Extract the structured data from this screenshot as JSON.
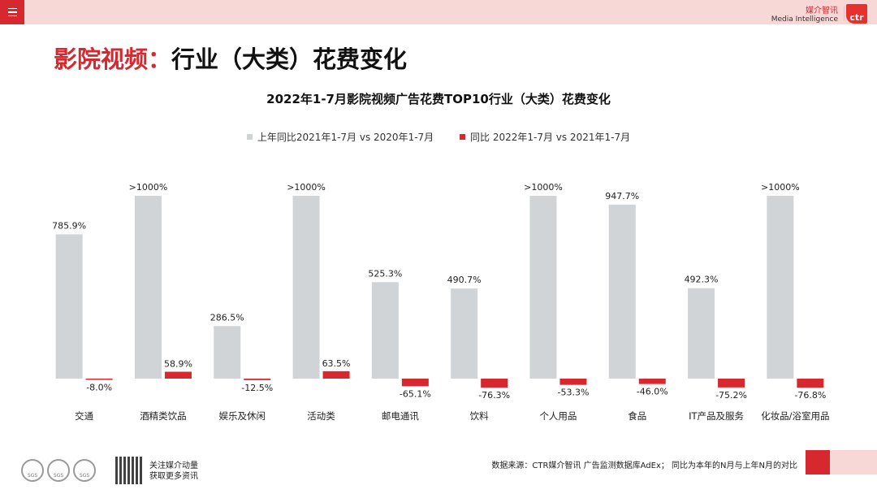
{
  "header": {
    "brand_cn": "媒介智讯",
    "brand_en": "Media Intelligence",
    "logo_text": "ctr"
  },
  "page_title": {
    "prefix": "影院视频：",
    "main": "行业（大类）花费变化"
  },
  "chart_data": {
    "type": "bar",
    "title": "2022年1-7月影院视频广告花费TOP10行业（大类）花费变化",
    "categories": [
      "交通",
      "酒精类饮品",
      "娱乐及休闲",
      "活动类",
      "邮电通讯",
      "饮料",
      "个人用品",
      "食品",
      "IT产品及服务",
      "化妆品/浴室用品"
    ],
    "series": [
      {
        "name": "上年同比2021年1-7月 vs 2020年1-7月",
        "color": "#d0d4d7",
        "values": [
          785.9,
          1000,
          286.5,
          1000,
          525.3,
          490.7,
          1000,
          947.7,
          492.3,
          1000
        ],
        "labels": [
          "785.9%",
          ">1000%",
          "286.5%",
          ">1000%",
          "525.3%",
          "490.7%",
          ">1000%",
          "947.7%",
          "492.3%",
          ">1000%"
        ]
      },
      {
        "name": "同比 2022年1-7月 vs 2021年1-7月",
        "color": "#d7282f",
        "values": [
          -8.0,
          58.9,
          -12.5,
          63.5,
          -65.1,
          -76.3,
          -53.3,
          -46.0,
          -75.2,
          -76.8
        ],
        "labels": [
          "-8.0%",
          "58.9%",
          "-12.5%",
          "63.5%",
          "-65.1%",
          "-76.3%",
          "-53.3%",
          "-46.0%",
          "-75.2%",
          "-76.8%"
        ]
      }
    ],
    "legend_position": "top",
    "grid": false
  },
  "footer": {
    "note": "数据来源：CTR媒介智讯 广告监测数据库AdEx； 同比为本年的N月与上年N月的对比",
    "qr_line1": "关注媒介动量",
    "qr_line2": "获取更多资讯",
    "sgs_label": "SGS"
  }
}
